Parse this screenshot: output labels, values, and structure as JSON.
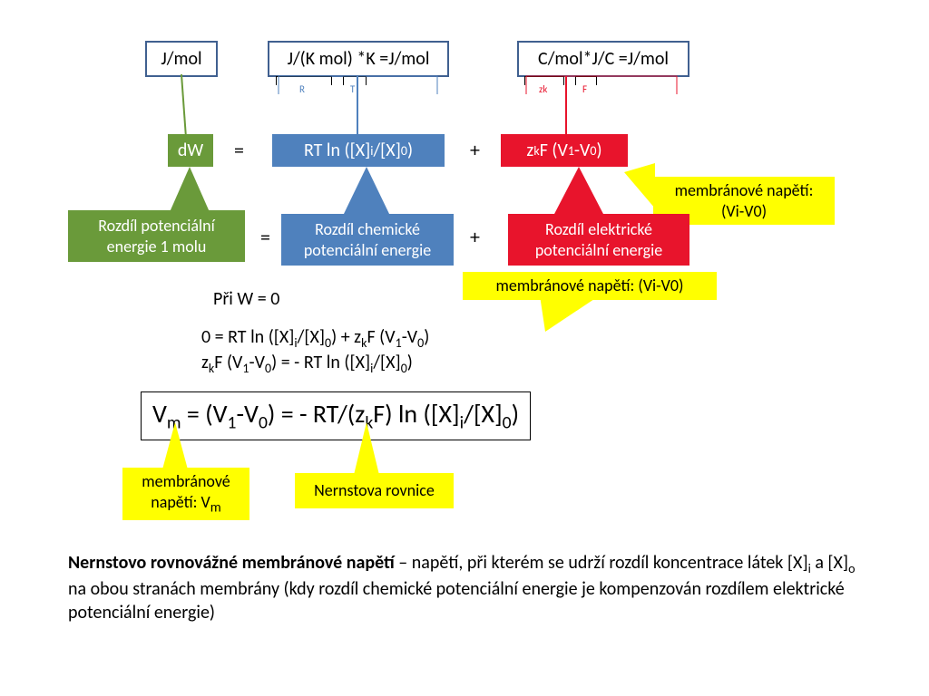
{
  "units": {
    "left": "J/mol",
    "middle": "J/(K mol) *K =J/mol",
    "right": "C/mol*J/C =J/mol"
  },
  "brace": {
    "R": "R",
    "T": "T",
    "zk": "zk",
    "F": "F"
  },
  "eq_row": {
    "dW": "dW",
    "eq1": "=",
    "rt_term_html": "RT  ln ([X]<span class='sub'>i</span>/[X]<span class='sub'>0</span>)",
    "plus1": "+",
    "zf_term_html": "z<span class='sub'>k</span>F (V<span class='sub'>1</span>-V<span class='sub'>0</span>)"
  },
  "desc_row": {
    "green": "Rozdíl potenciální energie 1 molu",
    "eq2": "=",
    "blue": "Rozdíl chemické potenciální energie",
    "plus2": "+",
    "red": "Rozdíl elektrické potenciální energie"
  },
  "callouts": {
    "memb_right_html": "membránové napětí:<br>(Vi-V0)",
    "memb_mid": "membránové napětí: (Vi-V0)",
    "memb_vm_html": "membránové<br>napětí: V<sub>m</sub>",
    "nernst_name": "Nernstova rovnice"
  },
  "derivation": {
    "pri_w": "Při W =   0",
    "line1_html": "0 =  RT  ln ([X]<span class='sub'>i</span>/[X]<span class='sub'>0</span>)   + z<span class='sub'>k</span>F (V<span class='sub'>1</span>-V<span class='sub'>0</span>)",
    "line2_html": "z<span class='sub'>k</span>F (V<span class='sub'>1</span>-V<span class='sub'>0</span>)  =  - RT  ln ([X]<span class='sub'>i</span>/[X]<span class='sub'>0</span>)"
  },
  "nernst_html": "V<span class='sub'>m</span> = (V<span class='sub'>1</span>-V<span class='sub'>0</span>)  =   - RT/(z<span class='sub'>k</span>F) ln ([X]<span class='sub'>i</span>/[X]<span class='sub'>0</span>)",
  "paragraph_html": "<b>Nernstovo rovnovážné membránové napětí</b> – napětí, při kterém se udrží rozdíl koncentrace látek [X]<span class='sub'>i</span> a [X]<span class='sub'>o</span> na obou stranách membrány (kdy rozdíl chemické potenciální energie je kompenzován  rozdílem elektrické potenciální energie)",
  "colors": {
    "green": "#6a9a3a",
    "blue": "#4f81bd",
    "red": "#e8142c",
    "yellow": "#ffff00",
    "unit_border": "#406090"
  }
}
